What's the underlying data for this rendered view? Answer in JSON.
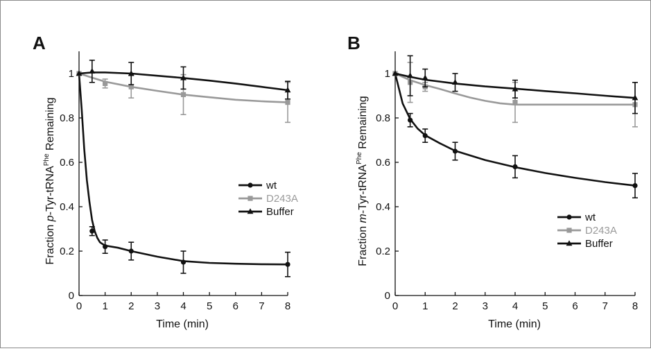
{
  "colors": {
    "dark": "#111111",
    "gray": "#999999",
    "graytext": "#9a9a9a"
  },
  "chart_data": [
    {
      "panel": "A",
      "type": "line",
      "xlabel": "Time (min)",
      "ylabel_pre": "Fraction ",
      "ylabel_italic": "p",
      "ylabel_mid": "-Tyr-tRNA",
      "ylabel_sup": "Phe",
      "ylabel_post": " Remaining",
      "xlim": [
        0,
        8
      ],
      "ylim": [
        0,
        1.1
      ],
      "xticks": [
        "0",
        "1",
        "2",
        "3",
        "4",
        "5",
        "6",
        "7",
        "8"
      ],
      "yticks": [
        "0",
        "0.2",
        "0.4",
        "0.6",
        "0.8",
        "1"
      ],
      "legend_placement": "middle-right",
      "series": [
        {
          "name": "wt",
          "marker": "circle",
          "color": "#111111",
          "x": [
            0,
            0.5,
            1,
            2,
            4,
            8
          ],
          "y": [
            1.0,
            0.29,
            0.22,
            0.2,
            0.15,
            0.14
          ],
          "err": [
            0,
            0.02,
            0.03,
            0.04,
            0.05,
            0.055
          ],
          "curve_x": [
            0,
            0.1,
            0.2,
            0.3,
            0.4,
            0.5,
            0.6,
            0.7,
            0.8,
            0.9,
            1,
            1.5,
            2,
            3,
            4,
            5,
            6,
            7,
            8
          ],
          "curve_y": [
            1.0,
            0.84,
            0.66,
            0.52,
            0.42,
            0.34,
            0.29,
            0.26,
            0.24,
            0.232,
            0.225,
            0.215,
            0.2,
            0.175,
            0.155,
            0.147,
            0.143,
            0.141,
            0.14
          ]
        },
        {
          "name": "D243A",
          "marker": "square",
          "color": "#999999",
          "x": [
            0,
            1,
            2,
            4,
            8
          ],
          "y": [
            1.0,
            0.955,
            0.94,
            0.905,
            0.87
          ],
          "err": [
            0,
            0.02,
            0.05,
            0.09,
            0.09
          ],
          "curve_x": [
            0,
            1,
            2,
            3,
            4,
            5,
            6,
            7,
            8
          ],
          "curve_y": [
            1.0,
            0.963,
            0.94,
            0.922,
            0.905,
            0.893,
            0.882,
            0.875,
            0.87
          ]
        },
        {
          "name": "Buffer",
          "marker": "triangle",
          "color": "#111111",
          "x": [
            0,
            0.5,
            2,
            4,
            8
          ],
          "y": [
            1.0,
            1.01,
            1.0,
            0.98,
            0.925
          ],
          "err": [
            0,
            0.05,
            0.05,
            0.05,
            0.04
          ],
          "curve_x": [
            0,
            0.5,
            1,
            2,
            3,
            4,
            5,
            6,
            7,
            8
          ],
          "curve_y": [
            1.0,
            1.005,
            1.005,
            1.0,
            0.99,
            0.98,
            0.968,
            0.955,
            0.94,
            0.925
          ]
        }
      ]
    },
    {
      "panel": "B",
      "type": "line",
      "xlabel": "Time (min)",
      "ylabel_pre": "Fraction ",
      "ylabel_italic": "m",
      "ylabel_mid": "-Tyr-tRNA",
      "ylabel_sup": "Phe",
      "ylabel_post": " Remaining",
      "xlim": [
        0,
        8
      ],
      "ylim": [
        0,
        1.1
      ],
      "xticks": [
        "0",
        "1",
        "2",
        "3",
        "4",
        "5",
        "6",
        "7",
        "8"
      ],
      "yticks": [
        "0",
        "0.2",
        "0.4",
        "0.6",
        "0.8",
        "1"
      ],
      "legend_placement": "bottom-right",
      "series": [
        {
          "name": "wt",
          "marker": "circle",
          "color": "#111111",
          "x": [
            0,
            0.5,
            1,
            2,
            4,
            8
          ],
          "y": [
            1.0,
            0.79,
            0.72,
            0.65,
            0.58,
            0.495
          ],
          "err": [
            0,
            0.03,
            0.03,
            0.04,
            0.05,
            0.055
          ],
          "curve_x": [
            0,
            0.25,
            0.5,
            0.75,
            1,
            1.5,
            2,
            3,
            4,
            5,
            6,
            7,
            8
          ],
          "curve_y": [
            1.0,
            0.865,
            0.795,
            0.752,
            0.722,
            0.685,
            0.652,
            0.61,
            0.578,
            0.552,
            0.53,
            0.511,
            0.495
          ]
        },
        {
          "name": "D243A",
          "marker": "square",
          "color": "#999999",
          "x": [
            0,
            0.5,
            1,
            4,
            8
          ],
          "y": [
            1.0,
            0.96,
            0.94,
            0.87,
            0.86
          ],
          "err": [
            0,
            0.09,
            0.02,
            0.09,
            0.1
          ],
          "curve_x": [
            0,
            0.5,
            1,
            1.5,
            2,
            2.5,
            3,
            3.5,
            4,
            5,
            6,
            7,
            8
          ],
          "curve_y": [
            1.0,
            0.97,
            0.948,
            0.93,
            0.91,
            0.892,
            0.877,
            0.866,
            0.86,
            0.86,
            0.86,
            0.86,
            0.86
          ]
        },
        {
          "name": "Buffer",
          "marker": "triangle",
          "color": "#111111",
          "x": [
            0,
            0.5,
            1,
            2,
            4,
            8
          ],
          "y": [
            1.0,
            0.99,
            0.98,
            0.96,
            0.93,
            0.89
          ],
          "err": [
            0,
            0.09,
            0.04,
            0.04,
            0.04,
            0.07
          ],
          "curve_x": [
            0,
            0.5,
            1,
            2,
            3,
            4,
            5,
            6,
            7,
            8
          ],
          "curve_y": [
            1.0,
            0.985,
            0.972,
            0.955,
            0.942,
            0.932,
            0.921,
            0.911,
            0.9,
            0.89
          ]
        }
      ]
    }
  ]
}
